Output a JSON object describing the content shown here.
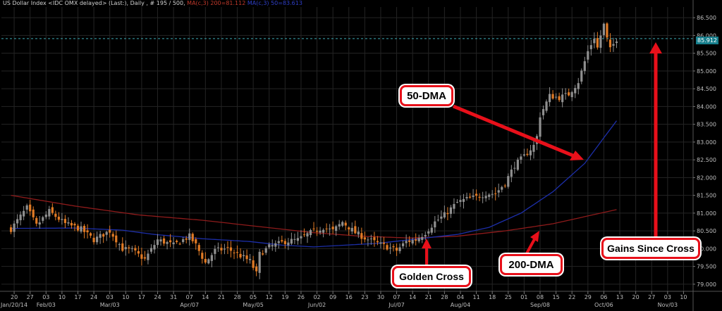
{
  "header": {
    "title": "US Dollar Index <IDC OMX delayed> (Last:), Daily , # 195 / 500,",
    "ma200": "MA(c,3) 200=81.112",
    "ma50": "MA(c,3) 50=83.613"
  },
  "price_tag": "85.912",
  "callouts": {
    "fifty_dma": "50-DMA",
    "golden_cross": "Golden Cross",
    "two_hundred_dma": "200-DMA",
    "gains_since_cross": "Gains Since Cross"
  },
  "colors": {
    "background": "#000000",
    "grid": "#242424",
    "up_candle": "#8f8f8f",
    "down_candle": "#e07a25",
    "ma50": "#1c2ea8",
    "ma200": "#8e1b1b",
    "annotation": "#e8101a",
    "price_line": "#3ea9b3"
  },
  "chart_data": {
    "type": "candlestick",
    "title": "US Dollar Index <IDC OMX delayed> (Last:), Daily , # 195 / 500,",
    "y_ticks": [
      "79.000",
      "79.500",
      "80.000",
      "80.500",
      "81.000",
      "81.500",
      "82.000",
      "82.500",
      "83.000",
      "83.500",
      "84.000",
      "84.500",
      "85.000",
      "85.500",
      "86.000",
      "86.500"
    ],
    "ylim": [
      78.8,
      86.8
    ],
    "x_ticks": [
      {
        "day": 1,
        "label": "20"
      },
      {
        "day": 6,
        "label": "27"
      },
      {
        "day": 11,
        "label": "03"
      },
      {
        "day": 16,
        "label": "10"
      },
      {
        "day": 21,
        "label": "17"
      },
      {
        "day": 26,
        "label": "24"
      },
      {
        "day": 31,
        "label": "03"
      },
      {
        "day": 36,
        "label": "10"
      },
      {
        "day": 41,
        "label": "17"
      },
      {
        "day": 46,
        "label": "24"
      },
      {
        "day": 51,
        "label": "31"
      },
      {
        "day": 56,
        "label": "07"
      },
      {
        "day": 61,
        "label": "14"
      },
      {
        "day": 66,
        "label": "21"
      },
      {
        "day": 71,
        "label": "28"
      },
      {
        "day": 76,
        "label": "05"
      },
      {
        "day": 81,
        "label": "12"
      },
      {
        "day": 86,
        "label": "19"
      },
      {
        "day": 91,
        "label": "26"
      },
      {
        "day": 96,
        "label": "02"
      },
      {
        "day": 101,
        "label": "09"
      },
      {
        "day": 106,
        "label": "16"
      },
      {
        "day": 111,
        "label": "23"
      },
      {
        "day": 116,
        "label": "30"
      },
      {
        "day": 121,
        "label": "07"
      },
      {
        "day": 126,
        "label": "14"
      },
      {
        "day": 131,
        "label": "21"
      },
      {
        "day": 136,
        "label": "28"
      },
      {
        "day": 141,
        "label": "04"
      },
      {
        "day": 146,
        "label": "11"
      },
      {
        "day": 151,
        "label": "18"
      },
      {
        "day": 156,
        "label": "25"
      },
      {
        "day": 161,
        "label": "01"
      },
      {
        "day": 166,
        "label": "08"
      },
      {
        "day": 171,
        "label": "15"
      },
      {
        "day": 176,
        "label": "22"
      },
      {
        "day": 181,
        "label": "29"
      },
      {
        "day": 186,
        "label": "06"
      },
      {
        "day": 191,
        "label": "13"
      },
      {
        "day": 196,
        "label": "20"
      },
      {
        "day": 201,
        "label": "27"
      },
      {
        "day": 206,
        "label": "03"
      },
      {
        "day": 211,
        "label": "10"
      }
    ],
    "month_labels": [
      {
        "day": 1,
        "label": "Jan/20/14"
      },
      {
        "day": 11,
        "label": "Feb/03"
      },
      {
        "day": 31,
        "label": "Mar/03"
      },
      {
        "day": 56,
        "label": "Apr/07"
      },
      {
        "day": 76,
        "label": "May/05"
      },
      {
        "day": 96,
        "label": "Jun/02"
      },
      {
        "day": 121,
        "label": "Jul/07"
      },
      {
        "day": 141,
        "label": "Aug/04"
      },
      {
        "day": 166,
        "label": "Sep/08"
      },
      {
        "day": 186,
        "label": "Oct/06"
      },
      {
        "day": 206,
        "label": "Nov/03"
      }
    ],
    "x_range": [
      -3,
      214
    ],
    "close_keypoints": [
      [
        0,
        80.55
      ],
      [
        5,
        81.15
      ],
      [
        8,
        80.65
      ],
      [
        12,
        81.05
      ],
      [
        17,
        80.7
      ],
      [
        22,
        80.55
      ],
      [
        26,
        80.25
      ],
      [
        31,
        80.5
      ],
      [
        35,
        80.0
      ],
      [
        38,
        79.95
      ],
      [
        42,
        79.7
      ],
      [
        46,
        80.25
      ],
      [
        51,
        80.1
      ],
      [
        56,
        80.35
      ],
      [
        58,
        80.1
      ],
      [
        61,
        79.6
      ],
      [
        64,
        79.95
      ],
      [
        68,
        80.0
      ],
      [
        71,
        79.85
      ],
      [
        75,
        79.65
      ],
      [
        77,
        79.3
      ],
      [
        78,
        79.85
      ],
      [
        81,
        80.05
      ],
      [
        86,
        80.2
      ],
      [
        90,
        80.25
      ],
      [
        94,
        80.45
      ],
      [
        98,
        80.6
      ],
      [
        101,
        80.5
      ],
      [
        104,
        80.75
      ],
      [
        108,
        80.45
      ],
      [
        111,
        80.3
      ],
      [
        115,
        80.15
      ],
      [
        118,
        80.05
      ],
      [
        121,
        79.95
      ],
      [
        124,
        80.2
      ],
      [
        127,
        80.25
      ],
      [
        130,
        80.45
      ],
      [
        133,
        80.75
      ],
      [
        136,
        80.95
      ],
      [
        140,
        81.3
      ],
      [
        143,
        81.4
      ],
      [
        146,
        81.45
      ],
      [
        149,
        81.55
      ],
      [
        152,
        81.55
      ],
      [
        155,
        81.85
      ],
      [
        158,
        82.35
      ],
      [
        161,
        82.6
      ],
      [
        164,
        82.9
      ],
      [
        165,
        83.15
      ],
      [
        166,
        83.75
      ],
      [
        169,
        84.3
      ],
      [
        172,
        84.25
      ],
      [
        175,
        84.35
      ],
      [
        178,
        84.7
      ],
      [
        181,
        85.55
      ],
      [
        183,
        85.95
      ],
      [
        184,
        85.65
      ],
      [
        185,
        86.0
      ],
      [
        186,
        86.3
      ],
      [
        187,
        85.9
      ],
      [
        188,
        85.6
      ],
      [
        190,
        85.9
      ]
    ],
    "ma50_keypoints": [
      [
        0,
        80.57
      ],
      [
        20,
        80.58
      ],
      [
        35,
        80.52
      ],
      [
        45,
        80.4
      ],
      [
        60,
        80.28
      ],
      [
        75,
        80.2
      ],
      [
        85,
        80.1
      ],
      [
        95,
        80.05
      ],
      [
        105,
        80.1
      ],
      [
        115,
        80.15
      ],
      [
        125,
        80.25
      ],
      [
        140,
        80.4
      ],
      [
        150,
        80.6
      ],
      [
        160,
        81.0
      ],
      [
        170,
        81.6
      ],
      [
        180,
        82.4
      ],
      [
        190,
        83.6
      ]
    ],
    "ma200_keypoints": [
      [
        0,
        81.5
      ],
      [
        20,
        81.2
      ],
      [
        40,
        80.95
      ],
      [
        60,
        80.8
      ],
      [
        80,
        80.6
      ],
      [
        95,
        80.45
      ],
      [
        110,
        80.35
      ],
      [
        125,
        80.3
      ],
      [
        140,
        80.35
      ],
      [
        155,
        80.5
      ],
      [
        170,
        80.7
      ],
      [
        180,
        80.9
      ],
      [
        190,
        81.1
      ]
    ],
    "last_price": 85.912
  }
}
